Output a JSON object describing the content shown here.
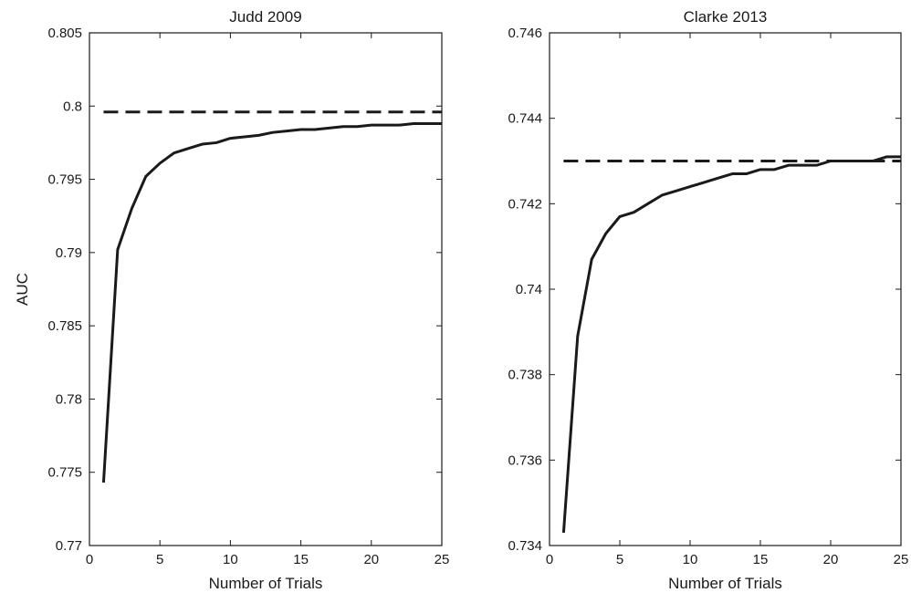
{
  "chart_data": [
    {
      "type": "line",
      "title": "Judd 2009",
      "xlabel": "Number of Trials",
      "ylabel": "AUC",
      "xlim": [
        0,
        25
      ],
      "ylim": [
        0.77,
        0.805
      ],
      "xticks": [
        "0",
        "5",
        "10",
        "15",
        "20",
        "25"
      ],
      "yticks": [
        "0.77",
        "0.775",
        "0.78",
        "0.785",
        "0.79",
        "0.795",
        "0.8",
        "0.805"
      ],
      "grid": false,
      "series": [
        {
          "style": "solid",
          "color": "#1a1a1a",
          "x": [
            1,
            2,
            3,
            4,
            5,
            6,
            7,
            8,
            9,
            10,
            11,
            12,
            13,
            14,
            15,
            16,
            17,
            18,
            19,
            20,
            21,
            22,
            23,
            24,
            25
          ],
          "y": [
            0.7743,
            0.7902,
            0.793,
            0.7952,
            0.7961,
            0.7968,
            0.7971,
            0.7974,
            0.7975,
            0.7978,
            0.7979,
            0.798,
            0.7982,
            0.7983,
            0.7984,
            0.7984,
            0.7985,
            0.7986,
            0.7986,
            0.7987,
            0.7987,
            0.7987,
            0.7988,
            0.7988,
            0.7988
          ]
        },
        {
          "style": "dashed",
          "color": "#1a1a1a",
          "x": [
            1,
            25
          ],
          "y": [
            0.7996,
            0.7996
          ]
        }
      ]
    },
    {
      "type": "line",
      "title": "Clarke 2013",
      "xlabel": "Number of Trials",
      "ylabel": "",
      "xlim": [
        0,
        25
      ],
      "ylim": [
        0.734,
        0.746
      ],
      "xticks": [
        "0",
        "5",
        "10",
        "15",
        "20",
        "25"
      ],
      "yticks": [
        "0.734",
        "0.736",
        "0.738",
        "0.74",
        "0.742",
        "0.744",
        "0.746"
      ],
      "grid": false,
      "series": [
        {
          "style": "solid",
          "color": "#1a1a1a",
          "x": [
            1,
            2,
            3,
            4,
            5,
            6,
            7,
            8,
            9,
            10,
            11,
            12,
            13,
            14,
            15,
            16,
            17,
            18,
            19,
            20,
            21,
            22,
            23,
            24,
            25
          ],
          "y": [
            0.7343,
            0.7389,
            0.7407,
            0.7413,
            0.7417,
            0.7418,
            0.742,
            0.7422,
            0.7423,
            0.7424,
            0.7425,
            0.7426,
            0.7427,
            0.7427,
            0.7428,
            0.7428,
            0.7429,
            0.7429,
            0.7429,
            0.743,
            0.743,
            0.743,
            0.743,
            0.7431,
            0.7431
          ]
        },
        {
          "style": "dashed",
          "color": "#1a1a1a",
          "x": [
            1,
            25
          ],
          "y": [
            0.743,
            0.743
          ]
        }
      ]
    }
  ]
}
